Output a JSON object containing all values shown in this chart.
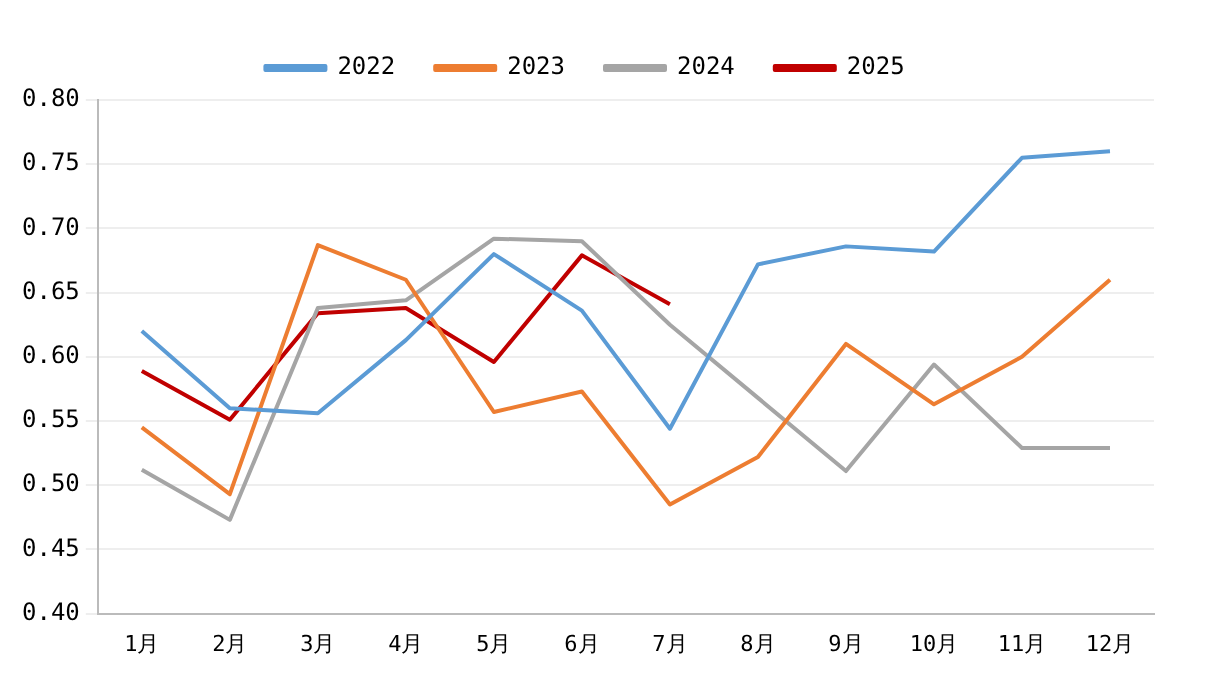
{
  "chart_data": {
    "type": "line",
    "categories": [
      "1月",
      "2月",
      "3月",
      "4月",
      "5月",
      "6月",
      "7月",
      "8月",
      "9月",
      "10月",
      "11月",
      "12月"
    ],
    "series": [
      {
        "name": "2022",
        "color": "#5b9bd5",
        "values": [
          0.62,
          0.56,
          0.556,
          0.613,
          0.68,
          0.636,
          0.544,
          0.672,
          0.686,
          0.682,
          0.755,
          0.76
        ]
      },
      {
        "name": "2023",
        "color": "#ed7d31",
        "values": [
          0.545,
          0.493,
          0.687,
          0.66,
          0.557,
          0.573,
          0.485,
          0.522,
          0.61,
          0.563,
          0.6,
          0.66
        ]
      },
      {
        "name": "2024",
        "color": "#a5a5a5",
        "values": [
          0.512,
          0.473,
          0.638,
          0.644,
          0.692,
          0.69,
          0.625,
          0.568,
          0.511,
          0.594,
          0.529,
          0.529
        ]
      },
      {
        "name": "2025",
        "color": "#c00000",
        "values": [
          0.589,
          0.551,
          0.634,
          0.638,
          0.596,
          0.679,
          0.641,
          null,
          null,
          null,
          null,
          null
        ]
      }
    ],
    "ylim": [
      0.4,
      0.8
    ],
    "yticks": [
      {
        "value": 0.4,
        "label": "0.40"
      },
      0.45,
      {
        "value": 0.5,
        "label": "0.50"
      },
      0.55,
      {
        "value": 0.6,
        "label": "0.60"
      },
      0.65,
      {
        "value": 0.7,
        "label": "0.70"
      },
      0.75,
      {
        "value": 0.8,
        "label": "0.80"
      }
    ],
    "grid": "y",
    "legend": "top",
    "marker": "none",
    "line_style": "solid"
  }
}
